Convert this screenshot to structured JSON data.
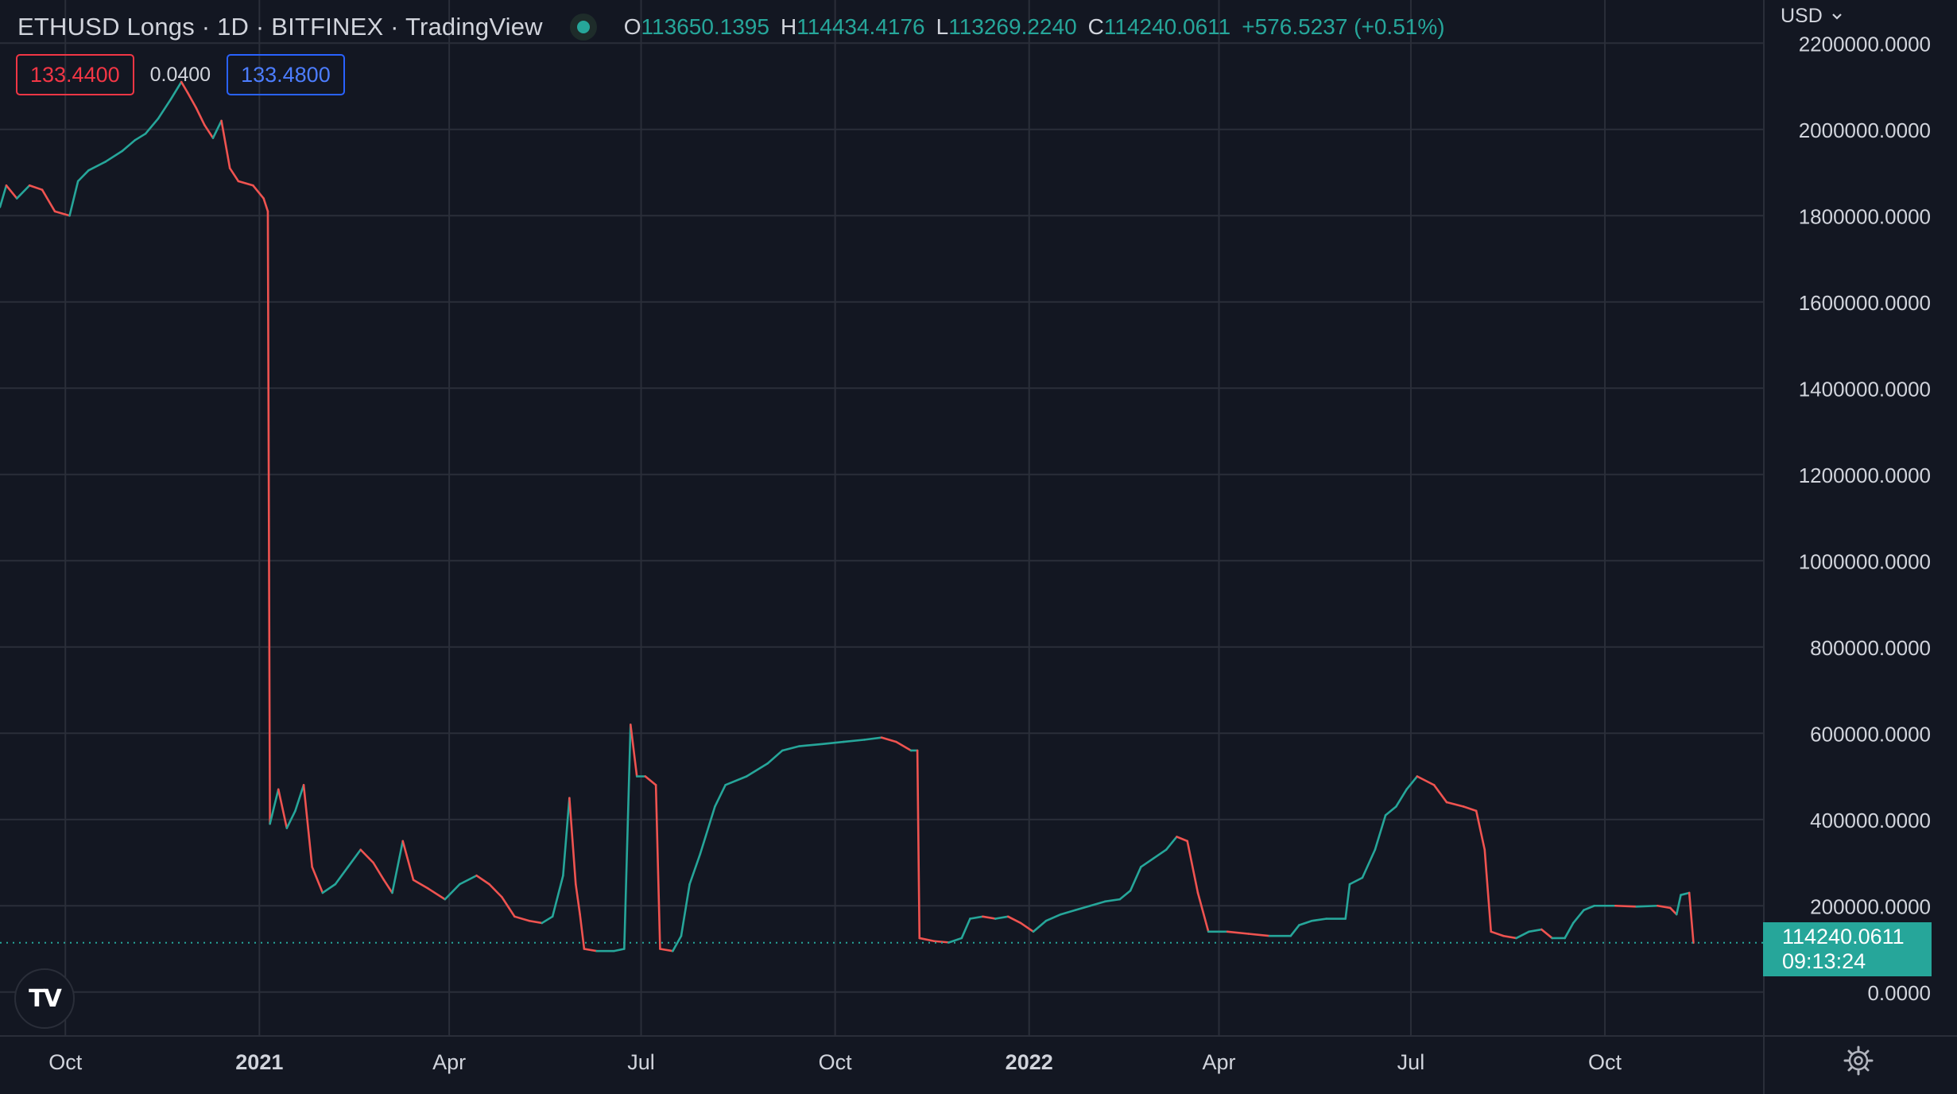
{
  "header": {
    "title": "ETHUSD Longs · 1D · BITFINEX · TradingView",
    "ohlc": {
      "o_label": "O",
      "o_value": "113650.1395",
      "h_label": "H",
      "h_value": "114434.4176",
      "l_label": "L",
      "l_value": "113269.2240",
      "c_label": "C",
      "c_value": "114240.0611",
      "change": "+576.5237 (+0.51%)"
    },
    "bid": "133.4400",
    "spread": "0.0400",
    "ask": "133.4800",
    "currency": "USD"
  },
  "price_label": {
    "value": "114240.0611",
    "countdown": "09:13:24"
  },
  "colors": {
    "background": "#131722",
    "grid": "#2a2e39",
    "up": "#26a69a",
    "down": "#ef5350",
    "text": "#d1d4dc"
  },
  "icons": {
    "logo": "tradingview-logo-icon",
    "settings": "gear-icon",
    "status": "market-status-dot-icon"
  },
  "chart_data": {
    "type": "line",
    "title": "ETHUSD Longs · 1D · BITFINEX",
    "xlabel": "",
    "ylabel": "",
    "ylim": [
      -100000,
      2300000
    ],
    "xlim": [
      "2020-08-31",
      "2022-12-15"
    ],
    "grid": true,
    "y_ticks": [
      "0.0000",
      "200000.0000",
      "400000.0000",
      "600000.0000",
      "800000.0000",
      "1000000.0000",
      "1200000.0000",
      "1400000.0000",
      "1600000.0000",
      "1800000.0000",
      "2000000.0000",
      "2200000.0000"
    ],
    "y_tick_values": [
      0,
      200000,
      400000,
      600000,
      800000,
      1000000,
      1200000,
      1400000,
      1600000,
      1800000,
      2000000,
      2200000
    ],
    "x_ticks": [
      {
        "label": "Oct",
        "date": "2020-10-01",
        "bold": false
      },
      {
        "label": "2021",
        "date": "2021-01-01",
        "bold": true
      },
      {
        "label": "Apr",
        "date": "2021-04-01",
        "bold": false
      },
      {
        "label": "Jul",
        "date": "2021-07-01",
        "bold": false
      },
      {
        "label": "Oct",
        "date": "2021-10-01",
        "bold": false
      },
      {
        "label": "2022",
        "date": "2022-01-01",
        "bold": true
      },
      {
        "label": "Apr",
        "date": "2022-04-01",
        "bold": false
      },
      {
        "label": "Jul",
        "date": "2022-07-01",
        "bold": false
      },
      {
        "label": "Oct",
        "date": "2022-10-01",
        "bold": false
      }
    ],
    "last_value": 114240.0611,
    "series": [
      {
        "points": [
          [
            "2020-08-31",
            1820000
          ],
          [
            "2020-09-03",
            1870000
          ],
          [
            "2020-09-08",
            1840000
          ],
          [
            "2020-09-14",
            1870000
          ],
          [
            "2020-09-20",
            1860000
          ],
          [
            "2020-09-26",
            1810000
          ],
          [
            "2020-10-03",
            1800000
          ],
          [
            "2020-10-07",
            1880000
          ],
          [
            "2020-10-12",
            1905000
          ],
          [
            "2020-10-20",
            1925000
          ],
          [
            "2020-10-28",
            1950000
          ],
          [
            "2020-11-03",
            1975000
          ],
          [
            "2020-11-08",
            1990000
          ],
          [
            "2020-11-14",
            2025000
          ],
          [
            "2020-11-20",
            2070000
          ],
          [
            "2020-11-25",
            2110000
          ],
          [
            "2020-11-28",
            2085000
          ],
          [
            "2020-12-02",
            2050000
          ],
          [
            "2020-12-06",
            2010000
          ],
          [
            "2020-12-10",
            1980000
          ],
          [
            "2020-12-14",
            2020000
          ],
          [
            "2020-12-18",
            1910000
          ],
          [
            "2020-12-22",
            1880000
          ],
          [
            "2020-12-29",
            1870000
          ],
          [
            "2021-01-03",
            1840000
          ],
          [
            "2021-01-05",
            1810000
          ],
          [
            "2021-01-06",
            390000
          ],
          [
            "2021-01-10",
            470000
          ],
          [
            "2021-01-14",
            380000
          ],
          [
            "2021-01-18",
            420000
          ],
          [
            "2021-01-22",
            480000
          ],
          [
            "2021-01-26",
            290000
          ],
          [
            "2021-01-31",
            230000
          ],
          [
            "2021-02-06",
            250000
          ],
          [
            "2021-02-12",
            290000
          ],
          [
            "2021-02-18",
            330000
          ],
          [
            "2021-02-24",
            300000
          ],
          [
            "2021-03-01",
            260000
          ],
          [
            "2021-03-05",
            230000
          ],
          [
            "2021-03-10",
            350000
          ],
          [
            "2021-03-15",
            260000
          ],
          [
            "2021-03-22",
            240000
          ],
          [
            "2021-03-30",
            215000
          ],
          [
            "2021-04-06",
            250000
          ],
          [
            "2021-04-14",
            270000
          ],
          [
            "2021-04-20",
            250000
          ],
          [
            "2021-04-26",
            220000
          ],
          [
            "2021-05-02",
            175000
          ],
          [
            "2021-05-09",
            165000
          ],
          [
            "2021-05-15",
            160000
          ],
          [
            "2021-05-20",
            175000
          ],
          [
            "2021-05-25",
            270000
          ],
          [
            "2021-05-28",
            450000
          ],
          [
            "2021-05-31",
            250000
          ],
          [
            "2021-06-02",
            180000
          ],
          [
            "2021-06-04",
            100000
          ],
          [
            "2021-06-10",
            95000
          ],
          [
            "2021-06-18",
            95000
          ],
          [
            "2021-06-23",
            100000
          ],
          [
            "2021-06-26",
            620000
          ],
          [
            "2021-06-29",
            500000
          ],
          [
            "2021-07-03",
            500000
          ],
          [
            "2021-07-08",
            480000
          ],
          [
            "2021-07-10",
            100000
          ],
          [
            "2021-07-16",
            95000
          ],
          [
            "2021-07-20",
            130000
          ],
          [
            "2021-07-24",
            250000
          ],
          [
            "2021-07-29",
            320000
          ],
          [
            "2021-08-05",
            430000
          ],
          [
            "2021-08-10",
            480000
          ],
          [
            "2021-08-20",
            500000
          ],
          [
            "2021-08-30",
            530000
          ],
          [
            "2021-09-06",
            560000
          ],
          [
            "2021-09-14",
            570000
          ],
          [
            "2021-09-25",
            575000
          ],
          [
            "2021-10-05",
            580000
          ],
          [
            "2021-10-15",
            585000
          ],
          [
            "2021-10-23",
            590000
          ],
          [
            "2021-10-30",
            580000
          ],
          [
            "2021-11-06",
            560000
          ],
          [
            "2021-11-09",
            560000
          ],
          [
            "2021-11-10",
            125000
          ],
          [
            "2021-11-17",
            118000
          ],
          [
            "2021-11-24",
            115000
          ],
          [
            "2021-11-30",
            125000
          ],
          [
            "2021-12-04",
            170000
          ],
          [
            "2021-12-10",
            175000
          ],
          [
            "2021-12-16",
            170000
          ],
          [
            "2021-12-22",
            175000
          ],
          [
            "2021-12-28",
            160000
          ],
          [
            "2022-01-03",
            140000
          ],
          [
            "2022-01-09",
            165000
          ],
          [
            "2022-01-16",
            180000
          ],
          [
            "2022-01-23",
            190000
          ],
          [
            "2022-01-30",
            200000
          ],
          [
            "2022-02-06",
            210000
          ],
          [
            "2022-02-13",
            215000
          ],
          [
            "2022-02-18",
            235000
          ],
          [
            "2022-02-23",
            290000
          ],
          [
            "2022-03-01",
            310000
          ],
          [
            "2022-03-07",
            330000
          ],
          [
            "2022-03-12",
            360000
          ],
          [
            "2022-03-17",
            350000
          ],
          [
            "2022-03-22",
            230000
          ],
          [
            "2022-03-27",
            140000
          ],
          [
            "2022-04-05",
            140000
          ],
          [
            "2022-04-15",
            135000
          ],
          [
            "2022-04-25",
            130000
          ],
          [
            "2022-05-05",
            130000
          ],
          [
            "2022-05-09",
            155000
          ],
          [
            "2022-05-15",
            165000
          ],
          [
            "2022-05-22",
            170000
          ],
          [
            "2022-05-31",
            170000
          ],
          [
            "2022-06-02",
            250000
          ],
          [
            "2022-06-08",
            265000
          ],
          [
            "2022-06-14",
            330000
          ],
          [
            "2022-06-19",
            410000
          ],
          [
            "2022-06-24",
            430000
          ],
          [
            "2022-06-29",
            470000
          ],
          [
            "2022-07-04",
            500000
          ],
          [
            "2022-07-12",
            480000
          ],
          [
            "2022-07-18",
            440000
          ],
          [
            "2022-07-26",
            430000
          ],
          [
            "2022-08-01",
            420000
          ],
          [
            "2022-08-05",
            330000
          ],
          [
            "2022-08-08",
            140000
          ],
          [
            "2022-08-14",
            130000
          ],
          [
            "2022-08-20",
            125000
          ],
          [
            "2022-08-26",
            140000
          ],
          [
            "2022-09-01",
            145000
          ],
          [
            "2022-09-06",
            125000
          ],
          [
            "2022-09-12",
            125000
          ],
          [
            "2022-09-16",
            160000
          ],
          [
            "2022-09-21",
            190000
          ],
          [
            "2022-09-26",
            200000
          ],
          [
            "2022-10-06",
            200000
          ],
          [
            "2022-10-16",
            198000
          ],
          [
            "2022-10-26",
            200000
          ],
          [
            "2022-11-01",
            195000
          ],
          [
            "2022-11-04",
            180000
          ],
          [
            "2022-11-06",
            225000
          ],
          [
            "2022-11-10",
            230000
          ],
          [
            "2022-11-12",
            114240
          ]
        ]
      }
    ]
  }
}
